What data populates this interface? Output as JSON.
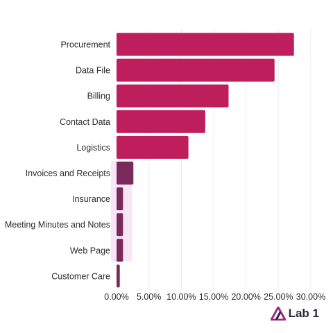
{
  "chart_data": {
    "type": "bar",
    "orientation": "horizontal",
    "categories": [
      "Procurement",
      "Data File",
      "Billing",
      "Contact Data",
      "Logistics",
      "Invoices and Receipts",
      "Insurance",
      "Meeting Minutes and Notes",
      "Web Page",
      "Customer Care"
    ],
    "values": [
      27.4,
      24.4,
      17.3,
      13.7,
      11.1,
      2.6,
      1.0,
      1.0,
      1.0,
      0.5
    ],
    "xlim": [
      0,
      30
    ],
    "xticks": [
      "0.00%",
      "5.00%",
      "10.00%",
      "15.00%",
      "20.00%",
      "25.00%",
      "30.00%"
    ],
    "bar_color": "#be1e5b",
    "small_bar_color": "#7a2a5a",
    "highlight_color": "#f7e6f7",
    "grid": true
  },
  "brand": {
    "name": "Lab 1",
    "color": "#2d2640",
    "accent": "#9b2a82"
  }
}
